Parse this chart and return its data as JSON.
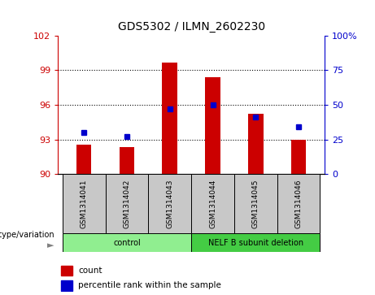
{
  "title": "GDS5302 / ILMN_2602230",
  "samples": [
    "GSM1314041",
    "GSM1314042",
    "GSM1314043",
    "GSM1314044",
    "GSM1314045",
    "GSM1314046"
  ],
  "counts": [
    92.55,
    92.35,
    99.65,
    98.4,
    95.25,
    93.0
  ],
  "percentile_ranks": [
    30,
    27,
    47,
    50,
    41,
    34
  ],
  "ylim_left": [
    90,
    102
  ],
  "ylim_right": [
    0,
    100
  ],
  "yticks_left": [
    90,
    93,
    96,
    99,
    102
  ],
  "yticks_right": [
    0,
    25,
    50,
    75,
    100
  ],
  "ytick_labels_right": [
    "0",
    "25",
    "50",
    "75",
    "100%"
  ],
  "groups": [
    {
      "label": "control",
      "indices": [
        0,
        1,
        2
      ],
      "color": "#90ee90"
    },
    {
      "label": "NELF B subunit deletion",
      "indices": [
        3,
        4,
        5
      ],
      "color": "#44cc44"
    }
  ],
  "bar_color": "#cc0000",
  "dot_color": "#0000cc",
  "bar_width": 0.35,
  "grid_color": "#000000",
  "plot_bg_color": "#ffffff",
  "sample_box_color": "#c8c8c8",
  "label_count": "count",
  "label_percentile": "percentile rank within the sample",
  "genotype_label": "genotype/variation",
  "ytick_color_left": "#cc0000",
  "ytick_color_right": "#0000cc"
}
